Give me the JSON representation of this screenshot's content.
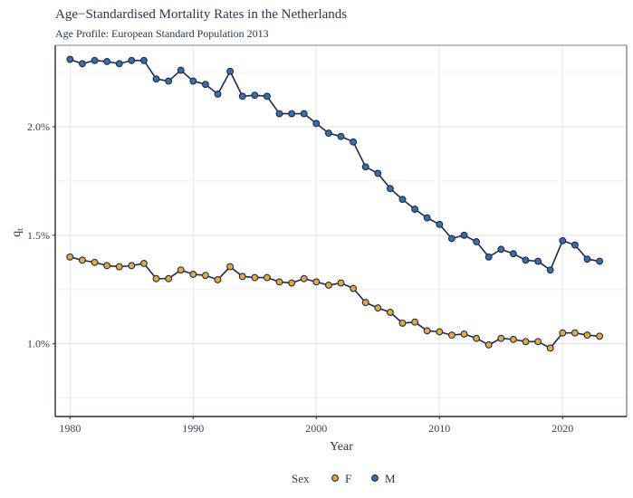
{
  "chart_data": {
    "type": "line",
    "title": "Age−Standardised Mortality Rates in the Netherlands",
    "subtitle": "Age Profile: European Standard Population 2013",
    "xlabel": "Year",
    "ylabel": "q",
    "ylabel_subscript": "t",
    "xlim": [
      1978.8,
      2025.2
    ],
    "ylim": [
      0.665,
      2.375
    ],
    "xticks": [
      1980,
      1990,
      2000,
      2010,
      2020
    ],
    "xtick_labels": [
      "1980",
      "1990",
      "2000",
      "2010",
      "2020"
    ],
    "yticks": [
      1.0,
      1.5,
      2.0
    ],
    "ytick_labels": [
      "1.0%",
      "1.5%",
      "2.0%"
    ],
    "y_minor_gridlines": [
      0.75,
      1.25,
      1.75,
      2.25
    ],
    "x_minor_gridlines": [],
    "grid": true,
    "legend": {
      "title": "Sex",
      "position": "bottom",
      "entries": [
        "F",
        "M"
      ]
    },
    "x": [
      1980,
      1981,
      1982,
      1983,
      1984,
      1985,
      1986,
      1987,
      1988,
      1989,
      1990,
      1991,
      1992,
      1993,
      1994,
      1995,
      1996,
      1997,
      1998,
      1999,
      2000,
      2001,
      2002,
      2003,
      2004,
      2005,
      2006,
      2007,
      2008,
      2009,
      2010,
      2011,
      2012,
      2013,
      2014,
      2015,
      2016,
      2017,
      2018,
      2019,
      2020,
      2021,
      2022,
      2023
    ],
    "series": [
      {
        "name": "F",
        "color": "#e8a840",
        "values": [
          1.4,
          1.385,
          1.375,
          1.36,
          1.355,
          1.36,
          1.37,
          1.3,
          1.3,
          1.34,
          1.32,
          1.315,
          1.295,
          1.355,
          1.31,
          1.305,
          1.305,
          1.285,
          1.28,
          1.3,
          1.285,
          1.27,
          1.28,
          1.255,
          1.19,
          1.165,
          1.145,
          1.095,
          1.1,
          1.06,
          1.055,
          1.04,
          1.045,
          1.025,
          0.995,
          1.025,
          1.02,
          1.01,
          1.01,
          0.98,
          1.05,
          1.05,
          1.04,
          1.035
        ]
      },
      {
        "name": "M",
        "color": "#3a6ea5",
        "values": [
          2.31,
          2.29,
          2.305,
          2.3,
          2.29,
          2.305,
          2.305,
          2.22,
          2.21,
          2.26,
          2.21,
          2.195,
          2.15,
          2.255,
          2.14,
          2.145,
          2.14,
          2.06,
          2.06,
          2.06,
          2.015,
          1.97,
          1.955,
          1.93,
          1.815,
          1.785,
          1.715,
          1.665,
          1.62,
          1.58,
          1.55,
          1.485,
          1.5,
          1.47,
          1.4,
          1.435,
          1.415,
          1.385,
          1.38,
          1.34,
          1.475,
          1.455,
          1.39,
          1.38
        ]
      }
    ],
    "line_color": "#1f2a4a"
  }
}
